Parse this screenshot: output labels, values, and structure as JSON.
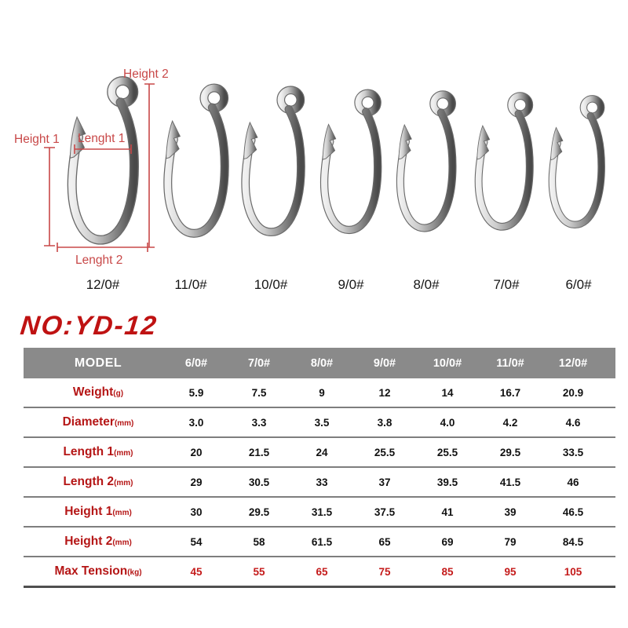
{
  "title": "NO:YD-12",
  "diagram": {
    "labels": {
      "height_1": "Height 1",
      "height_2": "Height 2",
      "length_1": "Lenght 1",
      "length_2": "Lenght 2"
    },
    "hook_sizes": [
      "12/0#",
      "11/0#",
      "10/0#",
      "9/0#",
      "8/0#",
      "7/0#",
      "6/0#"
    ]
  },
  "table": {
    "header": {
      "model_label": "MODEL",
      "sizes": [
        "6/0#",
        "7/0#",
        "8/0#",
        "9/0#",
        "10/0#",
        "11/0#",
        "12/0#"
      ]
    },
    "rows": [
      {
        "name": "Weight",
        "unit": "(g)",
        "values": [
          "5.9",
          "7.5",
          "9",
          "12",
          "14",
          "16.7",
          "20.9"
        ],
        "values_red": false
      },
      {
        "name": "Diameter",
        "unit": "(mm)",
        "values": [
          "3.0",
          "3.3",
          "3.5",
          "3.8",
          "4.0",
          "4.2",
          "4.6"
        ],
        "values_red": false
      },
      {
        "name": "Length 1",
        "unit": "(mm)",
        "values": [
          "20",
          "21.5",
          "24",
          "25.5",
          "25.5",
          "29.5",
          "33.5"
        ],
        "values_red": false
      },
      {
        "name": "Length 2",
        "unit": "(mm)",
        "values": [
          "29",
          "30.5",
          "33",
          "37",
          "39.5",
          "41.5",
          "46"
        ],
        "values_red": false
      },
      {
        "name": "Height 1",
        "unit": "(mm)",
        "values": [
          "30",
          "29.5",
          "31.5",
          "37.5",
          "41",
          "39",
          "46.5"
        ],
        "values_red": false
      },
      {
        "name": "Height 2",
        "unit": "(mm)",
        "values": [
          "54",
          "58",
          "61.5",
          "65",
          "69",
          "79",
          "84.5"
        ],
        "values_red": false
      },
      {
        "name": "Max Tension",
        "unit": "(kg)",
        "values": [
          "45",
          "55",
          "65",
          "75",
          "85",
          "95",
          "105"
        ],
        "values_red": true
      }
    ]
  },
  "colors": {
    "label_red": "#b51616",
    "tension_red": "#c41a1a",
    "title_red": "#bf1212",
    "diagram_red": "#c84848",
    "header_gray": "#8a8a8a"
  }
}
